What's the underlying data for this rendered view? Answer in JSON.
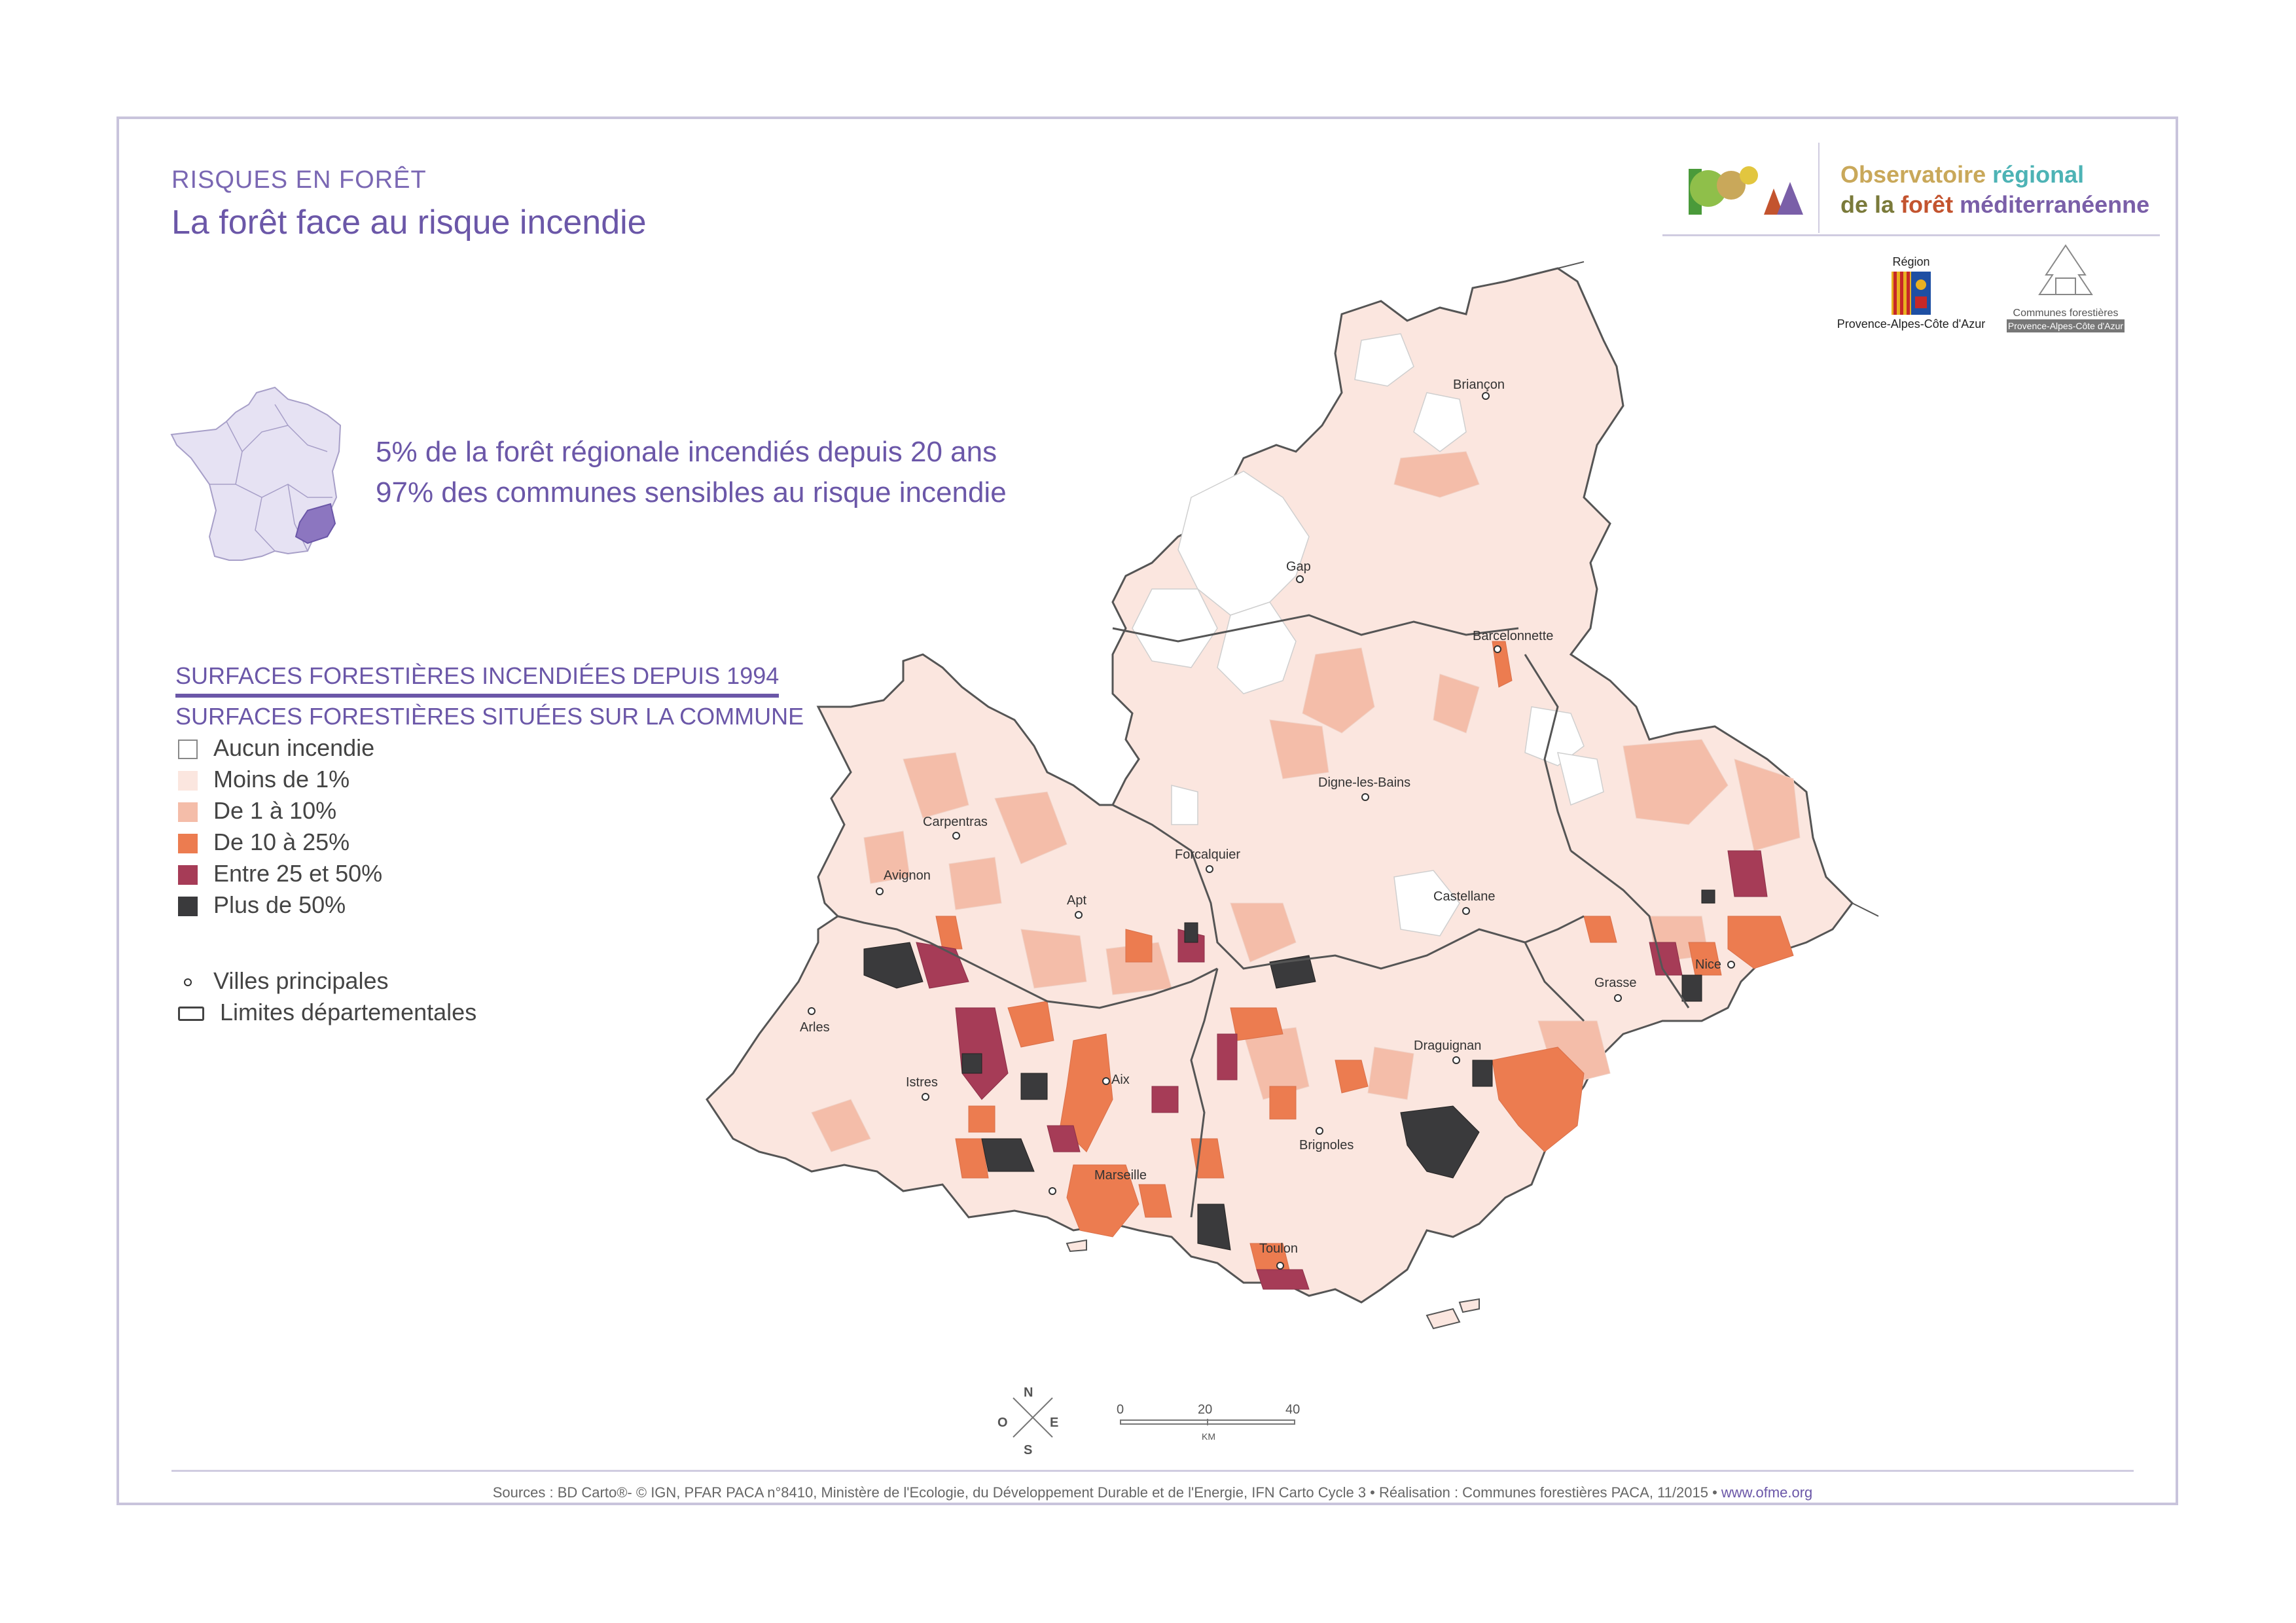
{
  "header": {
    "kicker": "RISQUES EN FORÊT",
    "title": "La forêt face au risque incendie"
  },
  "stats": [
    "5% de la forêt régionale incendiés depuis 20 ans",
    "97% des communes sensibles au risque incendie"
  ],
  "legend": {
    "heading_numerator": "SURFACES FORESTIÈRES INCENDIÉES DEPUIS 1994",
    "heading_denominator": "SURFACES FORESTIÈRES SITUÉES SUR LA COMMUNE",
    "classes": [
      {
        "label": "Aucun incendie",
        "color": "#ffffff"
      },
      {
        "label": "Moins de 1%",
        "color": "#fbe6df"
      },
      {
        "label": "De 1 à 10%",
        "color": "#f4bda9"
      },
      {
        "label": "De 10 à 25%",
        "color": "#ec7c50"
      },
      {
        "label": "Entre 25 et 50%",
        "color": "#a63c57"
      },
      {
        "label": "Plus de 50%",
        "color": "#3a3a3c"
      }
    ],
    "cities_label": "Villes principales",
    "boundaries_label": "Limites départementales"
  },
  "logo": {
    "line1_a": "Observatoire",
    "line1_b": "régional",
    "line2_a": "de la",
    "line2_b": "forêt",
    "line2_c": "méditerranéenne",
    "color_a": "#c9a85a",
    "color_b": "#4db3b5",
    "color_c": "#7a5fa8"
  },
  "region_logo": {
    "top": "Région",
    "bottom": "Provence-Alpes-Côte d'Azur"
  },
  "cf_logo": {
    "line1": "Communes forestières",
    "line2": "Provence-Alpes-Côte d'Azur"
  },
  "cities": [
    {
      "name": "Briançon",
      "icon": "city-dot-icon"
    },
    {
      "name": "Gap",
      "icon": "city-dot-icon"
    },
    {
      "name": "Barcelonnette",
      "icon": "city-dot-icon"
    },
    {
      "name": "Digne-les-Bains",
      "icon": "city-dot-icon"
    },
    {
      "name": "Carpentras",
      "icon": "city-dot-icon"
    },
    {
      "name": "Forcalquier",
      "icon": "city-dot-icon"
    },
    {
      "name": "Avignon",
      "icon": "city-dot-icon"
    },
    {
      "name": "Apt",
      "icon": "city-dot-icon"
    },
    {
      "name": "Castellane",
      "icon": "city-dot-icon"
    },
    {
      "name": "Nice",
      "icon": "city-dot-icon"
    },
    {
      "name": "Grasse",
      "icon": "city-dot-icon"
    },
    {
      "name": "Arles",
      "icon": "city-dot-icon"
    },
    {
      "name": "Draguignan",
      "icon": "city-dot-icon"
    },
    {
      "name": "Istres",
      "icon": "city-dot-icon"
    },
    {
      "name": "Aix",
      "icon": "city-dot-icon"
    },
    {
      "name": "Brignoles",
      "icon": "city-dot-icon"
    },
    {
      "name": "Marseille",
      "icon": "city-dot-icon"
    },
    {
      "name": "Toulon",
      "icon": "city-dot-icon"
    }
  ],
  "scale": {
    "ticks": [
      "0",
      "20",
      "40"
    ],
    "unit": "KM"
  },
  "compass": {
    "n": "N",
    "s": "S",
    "e": "E",
    "o": "O"
  },
  "footer": {
    "sources": "Sources : BD Carto®- © IGN, PFAR PACA n°8410, Ministère de l'Ecologie, du Développement Durable et de l'Energie, IFN Carto Cycle 3 • Réalisation : Communes forestières PACA, 11/2015 • ",
    "url": "www.ofme.org"
  }
}
